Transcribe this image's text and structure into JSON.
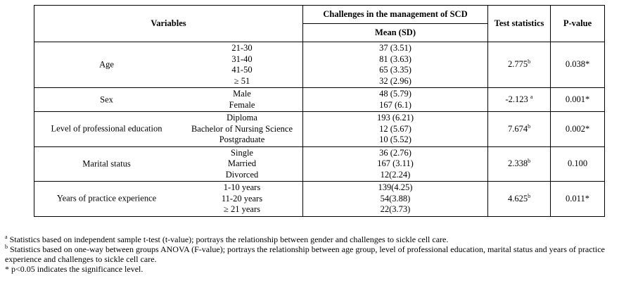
{
  "table": {
    "header": {
      "variables": "Variables",
      "challenges": "Challenges in the management of SCD",
      "mean_sd": "Mean (SD)",
      "test_statistics": "Test statistics",
      "p_value": "P-value"
    },
    "rows": [
      {
        "variable": "Age",
        "levels": [
          "21-30",
          "31-40",
          "41-50",
          "≥ 51"
        ],
        "means": [
          "37 (3.51)",
          "81 (3.63)",
          "65 (3.35)",
          "32 (2.96)"
        ],
        "test_stat": "2.775",
        "test_ref": "b",
        "p_value": "0.038*"
      },
      {
        "variable": "Sex",
        "levels": [
          "Male",
          "Female"
        ],
        "means": [
          "48 (5.79)",
          "167 (6.1)"
        ],
        "test_stat": "-2.123",
        "test_ref": "a",
        "p_value": "0.001*"
      },
      {
        "variable": "Level of professional education",
        "levels": [
          "Diploma",
          "Bachelor of Nursing Science",
          "Postgraduate"
        ],
        "means": [
          "193 (6.21)",
          "12 (5.67)",
          "10 (5.52)"
        ],
        "test_stat": "7.674",
        "test_ref": "b",
        "p_value": "0.002*"
      },
      {
        "variable": "Marital status",
        "levels": [
          "Single",
          "Married",
          "Divorced"
        ],
        "means": [
          "36 (2.76)",
          "167 (3.11)",
          "12(2.24)"
        ],
        "test_stat": "2.338",
        "test_ref": "b",
        "p_value": "0.100"
      },
      {
        "variable": "Years of practice experience",
        "levels": [
          "1-10 years",
          "11-20 years",
          "≥ 21 years"
        ],
        "means": [
          "139(4.25)",
          "54(3.88)",
          "22(3.73)"
        ],
        "test_stat": "4.625",
        "test_ref": "b",
        "p_value": "0.011*"
      }
    ]
  },
  "notes": [
    {
      "mark": "a",
      "text": " Statistics based on independent sample t-test (t-value); portrays the relationship between gender and challenges to sickle cell care."
    },
    {
      "mark": "b",
      "text": " Statistics based on one-way between groups ANOVA (F-value); portrays the relationship between age group, level of professional education, marital status and years of practice experience and challenges to sickle cell care."
    },
    {
      "mark": "",
      "text": " * p<0.05 indicates the significance level."
    }
  ]
}
